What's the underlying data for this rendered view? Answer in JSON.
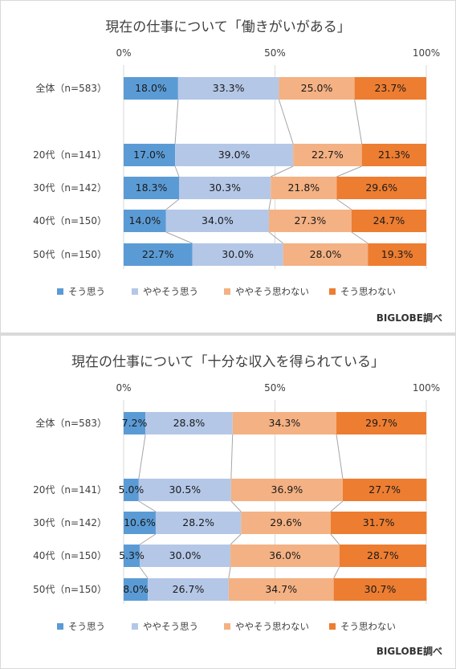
{
  "source_label": "BIGLOBE調べ",
  "colors": [
    "#5b9bd5",
    "#b4c7e7",
    "#f4b183",
    "#ed7d31"
  ],
  "chart_data": [
    {
      "type": "bar",
      "stacked": true,
      "orientation": "horizontal",
      "title": "現在の仕事について「働きがいがある」",
      "categories": [
        "全体（n=583）",
        "20代（n=141）",
        "30代（n=142）",
        "40代（n=150）",
        "50代（n=150）"
      ],
      "xlim": [
        0,
        100
      ],
      "ticks": [
        "0%",
        "50%",
        "100%"
      ],
      "gridlines": true,
      "legend_position": "bottom",
      "series": [
        {
          "name": "そう思う",
          "values": [
            18.0,
            17.0,
            18.3,
            14.0,
            22.7
          ],
          "labels": [
            "18.0%",
            "17.0%",
            "18.3%",
            "14.0%",
            "22.7%"
          ]
        },
        {
          "name": "ややそう思う",
          "values": [
            33.3,
            39.0,
            30.3,
            34.0,
            30.0
          ],
          "labels": [
            "33.3%",
            "39.0%",
            "30.3%",
            "34.0%",
            "30.0%"
          ]
        },
        {
          "name": "ややそう思わない",
          "values": [
            25.0,
            22.7,
            21.8,
            27.3,
            28.0
          ],
          "labels": [
            "25.0%",
            "22.7%",
            "21.8%",
            "27.3%",
            "28.0%"
          ]
        },
        {
          "name": "そう思わない",
          "values": [
            23.7,
            21.3,
            29.6,
            24.7,
            19.3
          ],
          "labels": [
            "23.7%",
            "21.3%",
            "29.6%",
            "24.7%",
            "19.3%"
          ]
        }
      ]
    },
    {
      "type": "bar",
      "stacked": true,
      "orientation": "horizontal",
      "title": "現在の仕事について「十分な収入を得られている」",
      "categories": [
        "全体（n=583）",
        "20代（n=141）",
        "30代（n=142）",
        "40代（n=150）",
        "50代（n=150）"
      ],
      "xlim": [
        0,
        100
      ],
      "ticks": [
        "0%",
        "50%",
        "100%"
      ],
      "gridlines": true,
      "legend_position": "bottom",
      "series": [
        {
          "name": "そう思う",
          "values": [
            7.2,
            5.0,
            10.6,
            5.3,
            8.0
          ],
          "labels": [
            "7.2%",
            "5.0%",
            "10.6%",
            "5.3%",
            "8.0%"
          ]
        },
        {
          "name": "ややそう思う",
          "values": [
            28.8,
            30.5,
            28.2,
            30.0,
            26.7
          ],
          "labels": [
            "28.8%",
            "30.5%",
            "28.2%",
            "30.0%",
            "26.7%"
          ]
        },
        {
          "name": "ややそう思わない",
          "values": [
            34.3,
            36.9,
            29.6,
            36.0,
            34.7
          ],
          "labels": [
            "34.3%",
            "36.9%",
            "29.6%",
            "36.0%",
            "34.7%"
          ]
        },
        {
          "name": "そう思わない",
          "values": [
            29.7,
            27.7,
            31.7,
            28.7,
            30.7
          ],
          "labels": [
            "29.7%",
            "27.7%",
            "31.7%",
            "28.7%",
            "30.7%"
          ]
        }
      ]
    }
  ]
}
